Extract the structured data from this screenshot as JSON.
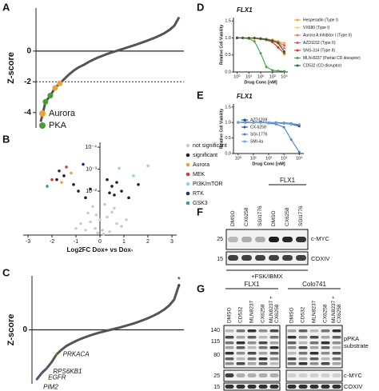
{
  "panel_labels": [
    "A",
    "B",
    "C",
    "D",
    "E",
    "F",
    "G"
  ],
  "chart_data": [
    {
      "type": "line",
      "y_label": "Z-score",
      "color": "#555555",
      "x": [
        1,
        2,
        3,
        4,
        5,
        6,
        7,
        8,
        9,
        10,
        11,
        12,
        13,
        14,
        15,
        16,
        17,
        18,
        19,
        20,
        21,
        22,
        23,
        24,
        25,
        26,
        27,
        28,
        29,
        30
      ],
      "values": [
        -4.6,
        -3.3,
        -2.9,
        -2.4,
        -2.1,
        -1.8,
        -1.5,
        -1.25,
        -1.05,
        -0.9,
        -0.72,
        -0.56,
        -0.42,
        -0.3,
        -0.18,
        -0.08,
        0.02,
        0.12,
        0.22,
        0.32,
        0.42,
        0.53,
        0.64,
        0.76,
        0.88,
        1.02,
        1.18,
        1.38,
        1.65,
        2.2
      ],
      "xlim": [
        0,
        31
      ],
      "ylim": [
        -5,
        2.8
      ],
      "yticks": [
        -4,
        -2,
        0
      ],
      "threshold": -2,
      "highlights": [
        {
          "name": "Aurora",
          "color": "#e8a33d",
          "x": [
            4,
            5
          ],
          "values": [
            -2.4,
            -2.1
          ]
        },
        {
          "name": "PKA",
          "color": "#4a9a3a",
          "x": [
            2,
            3
          ],
          "values": [
            -3.3,
            -2.9
          ]
        }
      ]
    },
    {
      "type": "scatter",
      "x_label": "Log2FC Dox+ vs Dox-",
      "log_y": true,
      "xlim": [
        -3.2,
        3.2
      ],
      "xticks": [
        -3,
        -2,
        -1,
        0,
        1,
        2,
        3
      ],
      "ylim": [
        1,
        6e-05
      ],
      "yticks": [
        {
          "value": 0.0001,
          "label": "10⁻⁴"
        },
        {
          "value": 0.001,
          "label": "10⁻³"
        },
        {
          "value": 0.01,
          "label": "10⁻²"
        }
      ],
      "series": [
        {
          "name": "not significant",
          "color": "#cccccc",
          "x": [
            -0.8,
            -0.5,
            -0.3,
            -0.2,
            -0.1,
            0,
            0.1,
            0.2,
            0.3,
            0.5,
            0.7,
            -0.6,
            0.4,
            -0.4,
            0.9,
            -1.0,
            1.1,
            0.15,
            -0.15,
            0.6
          ],
          "values": [
            0.3,
            0.1,
            0.05,
            0.5,
            0.8,
            0.2,
            0.6,
            0.04,
            0.15,
            0.09,
            0.3,
            0.6,
            0.7,
            0.25,
            0.4,
            0.5,
            0.2,
            0.9,
            0.12,
            0.06
          ]
        },
        {
          "name": "significant",
          "color": "#222222",
          "x": [
            -1.5,
            -1.1,
            -0.9,
            -0.6,
            -0.4,
            0.3,
            0.5,
            0.7,
            0.9,
            1.2,
            1.6,
            -1.8,
            0.4,
            0.6
          ],
          "values": [
            0.002,
            0.005,
            0.01,
            0.02,
            0.008,
            0.003,
            0.006,
            0.004,
            0.01,
            0.02,
            0.005,
            0.003,
            0.012,
            0.015
          ]
        },
        {
          "name": "Aurora",
          "color": "#e8a33d",
          "x": [
            -1.6,
            -1.2
          ],
          "values": [
            0.004,
            0.0015
          ]
        },
        {
          "name": "MEK",
          "color": "#d13b3b",
          "x": [
            -1.4,
            -2.0
          ],
          "values": [
            0.0008,
            0.003
          ]
        },
        {
          "name": "PI3K/mTOR",
          "color": "#9ecfe8",
          "x": [
            1.4,
            2.0,
            0.8
          ],
          "values": [
            0.002,
            0.0007,
            0.0009
          ]
        },
        {
          "name": "RTK",
          "color": "#1f2f6b",
          "x": [
            -1.7,
            -0.7
          ],
          "values": [
            0.0012,
            0.0006
          ]
        },
        {
          "name": "GSK3",
          "color": "#2aa198",
          "x": [
            -2.2
          ],
          "values": [
            0.006
          ]
        }
      ]
    },
    {
      "type": "line",
      "y_label": "Z-score",
      "color": "#555555",
      "x": [
        1,
        2,
        3,
        4,
        5,
        6,
        7,
        8,
        9,
        10,
        11,
        12,
        13,
        14,
        15,
        16,
        17,
        18,
        19,
        20,
        21,
        22,
        23,
        24,
        25,
        26,
        27,
        28,
        29,
        30
      ],
      "values": [
        -3.2,
        -2.8,
        -2.5,
        -2.1,
        -1.6,
        -1.3,
        -1.05,
        -0.88,
        -0.72,
        -0.58,
        -0.46,
        -0.35,
        -0.25,
        -0.16,
        -0.08,
        0,
        0.08,
        0.16,
        0.25,
        0.34,
        0.44,
        0.55,
        0.67,
        0.8,
        0.95,
        1.12,
        1.32,
        1.58,
        1.95,
        2.9
      ],
      "xlim": [
        0,
        31
      ],
      "ylim": [
        -3.5,
        3.5
      ],
      "yticks": [
        0
      ],
      "annotations": [
        {
          "text": "PRKACA",
          "x": 5,
          "y": -1.6,
          "color": "#4a8a2a"
        },
        {
          "text": "RPS6KB1",
          "x": 3,
          "y": -2.5,
          "color": "#4a5ac8"
        },
        {
          "text": "EGFR",
          "x": 2,
          "y": -2.8,
          "color": "#4a5ac8"
        },
        {
          "text": "PIM2",
          "x": 1,
          "y": -3.2,
          "color": "#4a5ac8"
        },
        {
          "text": "*",
          "x": 30,
          "y": 2.9,
          "color": "#333333"
        }
      ]
    },
    {
      "type": "line",
      "title": "FLX1",
      "x_label": "Drug Conc [nM]",
      "y_label": "Relative Cell Viability",
      "log_x": true,
      "x": [
        1,
        3,
        10,
        30,
        100,
        300,
        1000,
        3000,
        10000
      ],
      "xlim": [
        0.5,
        20000
      ],
      "xticks": [
        {
          "value": 1,
          "label": "10⁰"
        },
        {
          "value": 10,
          "label": "10¹"
        },
        {
          "value": 100,
          "label": "10²"
        },
        {
          "value": 1000,
          "label": "10³"
        },
        {
          "value": 10000,
          "label": "10⁴"
        }
      ],
      "ylim": [
        0,
        1.6
      ],
      "yticks": [
        {
          "value": 0,
          "label": "0.0"
        },
        {
          "value": 0.5,
          "label": "0.5"
        },
        {
          "value": 1,
          "label": "1.0"
        },
        {
          "value": 1.5,
          "label": "1.5"
        }
      ],
      "series": [
        {
          "name": "Hesperadin (Type I)",
          "color": "#f4a742",
          "values": [
            1.0,
            1.0,
            1.0,
            1.0,
            0.98,
            0.97,
            0.95,
            0.9,
            0.85
          ]
        },
        {
          "name": "VX680 (Type I)",
          "color": "#f6d67a",
          "values": [
            1.02,
            1.0,
            1.0,
            0.99,
            0.98,
            0.96,
            0.9,
            0.75,
            0.5
          ]
        },
        {
          "name": "Aurora A Inhibitor I (Type II)",
          "color": "#e8826a",
          "values": [
            1.0,
            1.01,
            1.0,
            1.0,
            0.99,
            0.97,
            0.93,
            0.85,
            0.7
          ]
        },
        {
          "name": "AZD1152 (Type II)",
          "color": "#e05577",
          "values": [
            1.01,
            1.0,
            0.99,
            1.0,
            0.98,
            0.96,
            0.92,
            0.88,
            0.78
          ]
        },
        {
          "name": "SNS-314 (Type II)",
          "color": "#d9342b",
          "values": [
            1.0,
            1.0,
            1.0,
            0.99,
            0.97,
            0.94,
            0.88,
            0.72,
            0.55
          ]
        },
        {
          "name": "MLN-8237 (Partial CD disruptor)",
          "color": "#4aa04a",
          "values": [
            1.0,
            1.0,
            0.98,
            0.9,
            0.55,
            0.15,
            0.05,
            0.03,
            0.02
          ]
        },
        {
          "name": "CD532 (CD disruptor)",
          "color": "#1e6b2e",
          "values": [
            1.0,
            1.0,
            1.0,
            1.0,
            0.98,
            0.96,
            0.92,
            0.85,
            0.6
          ]
        }
      ]
    },
    {
      "type": "line",
      "title": "FLX1",
      "x_label": "Drug Conc [nM]",
      "y_label": "Relative Cell Viability",
      "log_x": true,
      "x": [
        1,
        3,
        10,
        30,
        100,
        300,
        1000,
        3000,
        10000
      ],
      "xlim": [
        0.5,
        20000
      ],
      "xticks": [
        {
          "value": 1,
          "label": "10⁰"
        },
        {
          "value": 10,
          "label": "10¹"
        },
        {
          "value": 100,
          "label": "10²"
        },
        {
          "value": 1000,
          "label": "10³"
        },
        {
          "value": 10000,
          "label": "10⁴"
        }
      ],
      "ylim": [
        0,
        1.6
      ],
      "yticks": [
        {
          "value": 0,
          "label": "0.0"
        },
        {
          "value": 0.5,
          "label": "0.5"
        },
        {
          "value": 1,
          "label": "1.0"
        },
        {
          "value": 1.5,
          "label": "1.5"
        }
      ],
      "series": [
        {
          "name": "AZD1208",
          "color": "#1a3a8a",
          "values": [
            1.0,
            1.02,
            1.0,
            1.01,
            1.0,
            1.0,
            0.99,
            0.97,
            0.92
          ]
        },
        {
          "name": "CX-6258",
          "color": "#2a50b0",
          "values": [
            1.01,
            1.0,
            1.0,
            1.0,
            0.99,
            0.99,
            0.97,
            0.95,
            0.88
          ]
        },
        {
          "name": "SGI-1776",
          "color": "#4a80d8",
          "values": [
            1.0,
            1.0,
            1.0,
            1.0,
            0.98,
            0.95,
            0.85,
            0.45,
            0.05
          ]
        },
        {
          "name": "SMI-4a",
          "color": "#6aa0e8",
          "values": [
            1.0,
            1.01,
            1.0,
            1.0,
            1.0,
            0.99,
            0.98,
            0.96,
            0.94
          ]
        }
      ]
    }
  ],
  "blot_f": {
    "cell_line": "FLX1",
    "lanes": [
      "DMSO",
      "CX6258",
      "SGI1776",
      "DMSO",
      "CX6258",
      "SGI1776"
    ],
    "markers": [
      25,
      15
    ],
    "proteins": [
      "c-MYC",
      "COXIV"
    ],
    "treatment": "+FSK/IBMX"
  },
  "blot_g": {
    "groups": [
      {
        "cell_line": "FLX1",
        "lanes": [
          [
            "DMSO"
          ],
          [
            "CD532"
          ],
          [
            "MLN8237"
          ],
          [
            "CX6258"
          ],
          [
            "MLN8237 +",
            "CX6258"
          ]
        ]
      },
      {
        "cell_line": "Colo741",
        "lanes": [
          [
            "DMSO"
          ],
          [
            "CD532"
          ],
          [
            "MLN8237"
          ],
          [
            "CX6258"
          ],
          [
            "MLN8237 +",
            "CX6258"
          ]
        ]
      }
    ],
    "markers": [
      140,
      115,
      80,
      25,
      15
    ],
    "proteins": [
      [
        "pPKA",
        "substrate"
      ],
      [
        "c-MYC"
      ],
      [
        "COXIV"
      ]
    ]
  }
}
